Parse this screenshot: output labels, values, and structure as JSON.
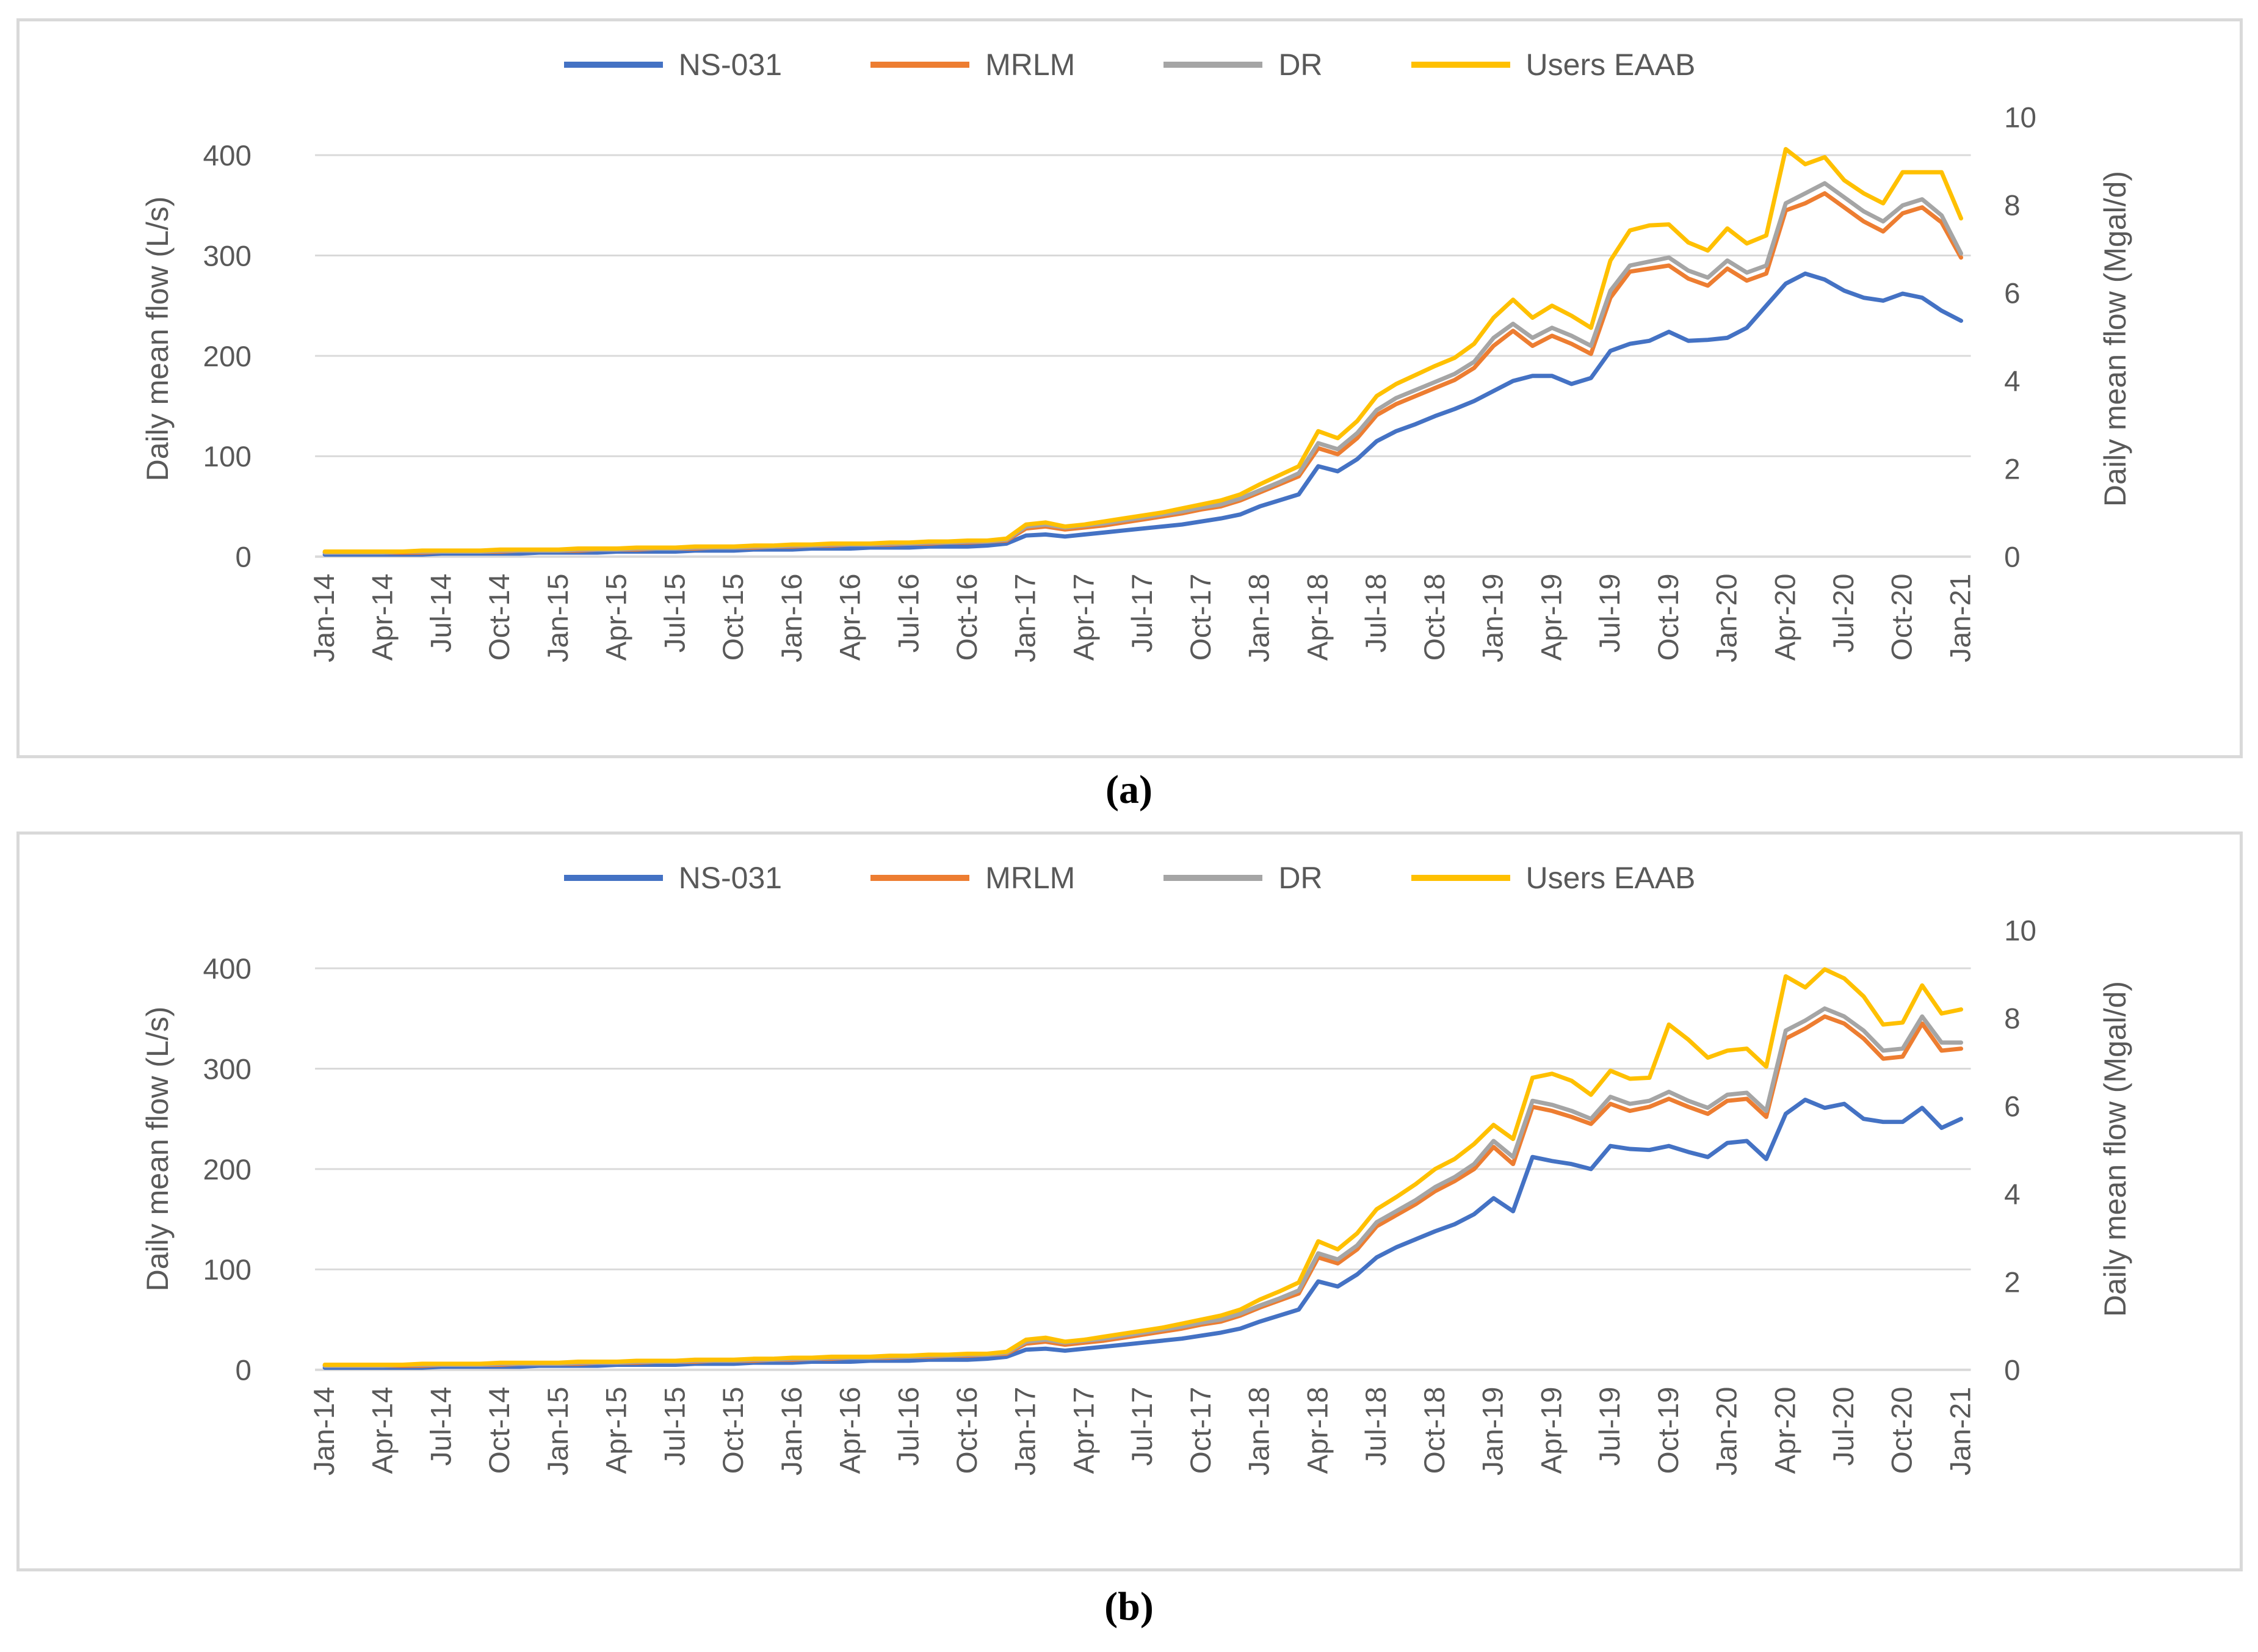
{
  "page": {
    "caption_a": "(a)",
    "caption_b": "(b)"
  },
  "colors": {
    "axis_text": "#595959",
    "gridline": "#D9D9D9",
    "panel_border": "#D9D9D9",
    "ns031": "#4472C4",
    "mrlm": "#ED7D31",
    "dr": "#A5A5A5",
    "users_eaab": "#FFC000"
  },
  "chart_data": [
    {
      "type": "line",
      "panel": "a",
      "title": "(a)",
      "ylabel_left": "Daily mean flow (L/s)",
      "ylabel_right": "Daily mean flow (Mgal/d)",
      "yticks_left": [
        0,
        100,
        200,
        300,
        400
      ],
      "yticks_right": [
        0,
        2,
        4,
        6,
        8,
        10
      ],
      "ylim_left": [
        0,
        438
      ],
      "ylim_right": [
        0,
        10
      ],
      "grid": true,
      "legend_position": "top",
      "x_tick_labels": [
        "Jan-14",
        "Apr-14",
        "Jul-14",
        "Oct-14",
        "Jan-15",
        "Apr-15",
        "Jul-15",
        "Oct-15",
        "Jan-16",
        "Apr-16",
        "Jul-16",
        "Oct-16",
        "Jan-17",
        "Apr-17",
        "Jul-17",
        "Oct-17",
        "Jan-18",
        "Apr-18",
        "Jul-18",
        "Oct-18",
        "Jan-19",
        "Apr-19",
        "Jul-19",
        "Oct-19",
        "Jan-20",
        "Apr-20",
        "Jul-20",
        "Oct-20",
        "Jan-21"
      ],
      "x_tick_every": 3,
      "series": [
        {
          "name": "NS-031",
          "color": "#4472C4",
          "values": [
            2,
            2,
            2,
            2,
            2,
            2,
            3,
            3,
            3,
            3,
            3,
            4,
            4,
            4,
            4,
            5,
            5,
            5,
            5,
            6,
            6,
            6,
            7,
            7,
            7,
            8,
            8,
            8,
            9,
            9,
            9,
            10,
            10,
            10,
            11,
            13,
            21,
            22,
            20,
            22,
            24,
            26,
            28,
            30,
            32,
            35,
            38,
            42,
            50,
            56,
            62,
            90,
            85,
            97,
            115,
            125,
            132,
            140,
            147,
            155,
            165,
            175,
            180,
            180,
            172,
            178,
            205,
            212,
            215,
            224,
            215,
            216,
            218,
            228,
            250,
            272,
            282,
            276,
            265,
            258,
            255,
            262,
            258,
            245,
            235
          ]
        },
        {
          "name": "MRLM",
          "color": "#ED7D31",
          "values": [
            4,
            4,
            4,
            4,
            4,
            4,
            5,
            5,
            5,
            5,
            6,
            6,
            6,
            6,
            7,
            7,
            7,
            8,
            8,
            8,
            9,
            9,
            9,
            10,
            10,
            11,
            11,
            12,
            12,
            12,
            13,
            13,
            14,
            14,
            15,
            16,
            28,
            30,
            27,
            29,
            31,
            34,
            37,
            40,
            43,
            47,
            50,
            56,
            64,
            72,
            80,
            108,
            102,
            118,
            141,
            152,
            160,
            168,
            176,
            188,
            210,
            225,
            210,
            220,
            212,
            202,
            258,
            284,
            287,
            290,
            277,
            270,
            287,
            275,
            282,
            345,
            352,
            362,
            348,
            334,
            324,
            342,
            348,
            333,
            298
          ]
        },
        {
          "name": "DR",
          "color": "#A5A5A5",
          "values": [
            4,
            4,
            4,
            4,
            5,
            5,
            5,
            5,
            5,
            6,
            6,
            6,
            6,
            7,
            7,
            7,
            8,
            8,
            8,
            9,
            9,
            9,
            10,
            10,
            11,
            11,
            12,
            12,
            12,
            13,
            13,
            14,
            14,
            15,
            15,
            17,
            30,
            32,
            29,
            31,
            33,
            36,
            39,
            42,
            45,
            49,
            52,
            58,
            66,
            74,
            83,
            113,
            107,
            123,
            146,
            158,
            166,
            174,
            182,
            194,
            218,
            232,
            218,
            228,
            220,
            210,
            265,
            290,
            294,
            298,
            285,
            278,
            295,
            283,
            290,
            352,
            362,
            372,
            358,
            344,
            334,
            350,
            356,
            340,
            302
          ]
        },
        {
          "name": "Users EAAB",
          "color": "#FFC000",
          "values": [
            5,
            5,
            5,
            5,
            5,
            6,
            6,
            6,
            6,
            7,
            7,
            7,
            7,
            8,
            8,
            8,
            9,
            9,
            9,
            10,
            10,
            10,
            11,
            11,
            12,
            12,
            13,
            13,
            13,
            14,
            14,
            15,
            15,
            16,
            16,
            18,
            32,
            34,
            30,
            32,
            35,
            38,
            41,
            44,
            48,
            52,
            56,
            62,
            72,
            81,
            90,
            125,
            118,
            135,
            160,
            172,
            181,
            190,
            198,
            212,
            238,
            256,
            238,
            250,
            240,
            228,
            295,
            325,
            330,
            331,
            313,
            305,
            327,
            312,
            320,
            406,
            391,
            398,
            375,
            362,
            352,
            383,
            383,
            383,
            337
          ]
        }
      ]
    },
    {
      "type": "line",
      "panel": "b",
      "title": "(b)",
      "ylabel_left": "Daily mean flow (L/s)",
      "ylabel_right": "Daily mean flow (Mgal/d)",
      "yticks_left": [
        0,
        100,
        200,
        300,
        400
      ],
      "yticks_right": [
        0,
        2,
        4,
        6,
        8,
        10
      ],
      "ylim_left": [
        0,
        438
      ],
      "ylim_right": [
        0,
        10
      ],
      "grid": true,
      "legend_position": "top",
      "x_tick_labels": [
        "Jan-14",
        "Apr-14",
        "Jul-14",
        "Oct-14",
        "Jan-15",
        "Apr-15",
        "Jul-15",
        "Oct-15",
        "Jan-16",
        "Apr-16",
        "Jul-16",
        "Oct-16",
        "Jan-17",
        "Apr-17",
        "Jul-17",
        "Oct-17",
        "Jan-18",
        "Apr-18",
        "Jul-18",
        "Oct-18",
        "Jan-19",
        "Apr-19",
        "Jul-19",
        "Oct-19",
        "Jan-20",
        "Apr-20",
        "Jul-20",
        "Oct-20",
        "Jan-21"
      ],
      "x_tick_every": 3,
      "series": [
        {
          "name": "NS-031",
          "color": "#4472C4",
          "values": [
            2,
            2,
            2,
            2,
            2,
            2,
            3,
            3,
            3,
            3,
            3,
            4,
            4,
            4,
            4,
            5,
            5,
            5,
            5,
            6,
            6,
            6,
            7,
            7,
            7,
            8,
            8,
            8,
            9,
            9,
            9,
            10,
            10,
            10,
            11,
            13,
            20,
            21,
            19,
            21,
            23,
            25,
            27,
            29,
            31,
            34,
            37,
            41,
            48,
            54,
            60,
            88,
            83,
            95,
            112,
            122,
            130,
            138,
            145,
            155,
            171,
            158,
            212,
            208,
            205,
            200,
            223,
            220,
            219,
            223,
            217,
            212,
            226,
            228,
            210,
            255,
            269,
            261,
            265,
            250,
            247,
            247,
            261,
            241,
            250
          ]
        },
        {
          "name": "MRLM",
          "color": "#ED7D31",
          "values": [
            4,
            4,
            4,
            4,
            4,
            4,
            5,
            5,
            5,
            5,
            6,
            6,
            6,
            6,
            7,
            7,
            7,
            8,
            8,
            8,
            9,
            9,
            9,
            10,
            10,
            11,
            11,
            12,
            12,
            12,
            13,
            13,
            14,
            14,
            15,
            16,
            26,
            28,
            25,
            27,
            29,
            32,
            35,
            38,
            41,
            45,
            48,
            54,
            62,
            69,
            76,
            112,
            106,
            120,
            143,
            154,
            165,
            178,
            188,
            200,
            222,
            205,
            262,
            258,
            252,
            245,
            265,
            258,
            262,
            270,
            262,
            255,
            268,
            270,
            252,
            330,
            340,
            352,
            345,
            330,
            310,
            312,
            345,
            318,
            320
          ]
        },
        {
          "name": "DR",
          "color": "#A5A5A5",
          "values": [
            4,
            4,
            4,
            4,
            5,
            5,
            5,
            5,
            5,
            6,
            6,
            6,
            6,
            7,
            7,
            7,
            8,
            8,
            8,
            9,
            9,
            9,
            10,
            10,
            11,
            11,
            12,
            12,
            12,
            13,
            13,
            14,
            14,
            15,
            15,
            17,
            28,
            30,
            27,
            29,
            31,
            34,
            37,
            40,
            43,
            47,
            50,
            56,
            64,
            71,
            79,
            116,
            110,
            124,
            147,
            158,
            169,
            182,
            192,
            205,
            228,
            212,
            268,
            264,
            258,
            250,
            272,
            265,
            268,
            277,
            268,
            261,
            274,
            276,
            258,
            338,
            348,
            360,
            352,
            338,
            318,
            320,
            352,
            326,
            326
          ]
        },
        {
          "name": "Users EAAB",
          "color": "#FFC000",
          "values": [
            5,
            5,
            5,
            5,
            5,
            6,
            6,
            6,
            6,
            7,
            7,
            7,
            7,
            8,
            8,
            8,
            9,
            9,
            9,
            10,
            10,
            10,
            11,
            11,
            12,
            12,
            13,
            13,
            13,
            14,
            14,
            15,
            15,
            16,
            16,
            18,
            30,
            32,
            28,
            30,
            33,
            36,
            39,
            42,
            46,
            50,
            54,
            60,
            70,
            78,
            87,
            128,
            120,
            136,
            160,
            172,
            185,
            200,
            210,
            225,
            244,
            230,
            291,
            295,
            288,
            274,
            298,
            290,
            291,
            344,
            329,
            311,
            318,
            320,
            302,
            392,
            381,
            399,
            390,
            372,
            344,
            346,
            383,
            355,
            359
          ]
        }
      ]
    }
  ]
}
